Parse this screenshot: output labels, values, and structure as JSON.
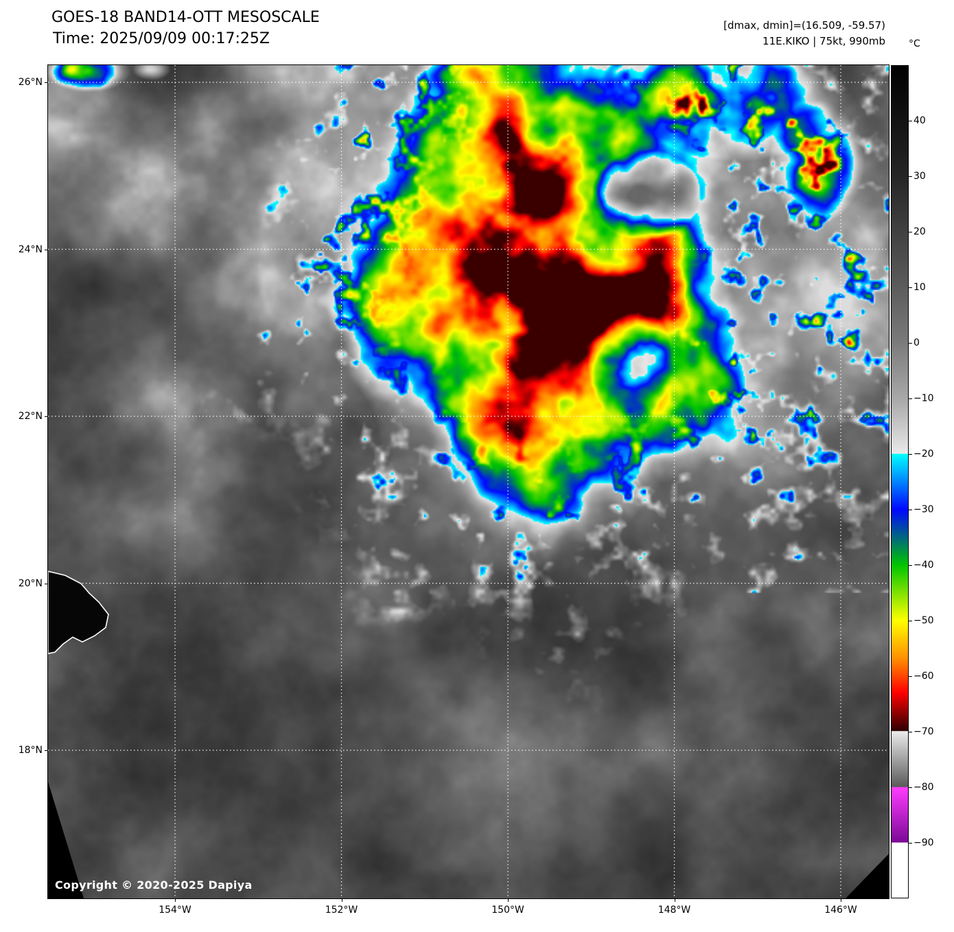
{
  "header": {
    "title": "GOES-18 BAND14-OTT MESOSCALE",
    "time_line": "Time: 2025/09/09 00:17:25Z",
    "range_line": "[dmax, dmin]=(16.509, -59.57)",
    "storm_line": "11E.KIKO | 75kt, 990mb"
  },
  "colorbar": {
    "unit_label": "°C",
    "domain": [
      50,
      -100
    ],
    "tick_values": [
      40,
      30,
      20,
      10,
      0,
      -10,
      -20,
      -30,
      -40,
      -50,
      -60,
      -70,
      -80,
      -90
    ],
    "stops": [
      {
        "t": 50,
        "color": "#000000"
      },
      {
        "t": 30,
        "color": "#262626"
      },
      {
        "t": 10,
        "color": "#5c5c5c"
      },
      {
        "t": 0,
        "color": "#7b7b7b"
      },
      {
        "t": -10,
        "color": "#a8a8a8"
      },
      {
        "t": -19.9,
        "color": "#e9e9e9"
      },
      {
        "t": -20,
        "color": "#00ffff"
      },
      {
        "t": -30,
        "color": "#0008ff"
      },
      {
        "t": -40,
        "color": "#00c400"
      },
      {
        "t": -50,
        "color": "#ffff00"
      },
      {
        "t": -57,
        "color": "#ff8c00"
      },
      {
        "t": -63,
        "color": "#ff0000"
      },
      {
        "t": -69.9,
        "color": "#2e0000"
      },
      {
        "t": -70,
        "color": "#ebebeb"
      },
      {
        "t": -80,
        "color": "#5a5a5a"
      },
      {
        "t": -80.1,
        "color": "#ff3cff"
      },
      {
        "t": -90,
        "color": "#7a0a96"
      },
      {
        "t": -90.1,
        "color": "#ffffff"
      },
      {
        "t": -100,
        "color": "#ffffff"
      }
    ]
  },
  "axes": {
    "lat_labels": [
      "26°N",
      "24°N",
      "22°N",
      "20°N",
      "18°N"
    ],
    "lon_labels": [
      "154°W",
      "152°W",
      "150°W",
      "148°W",
      "146°W"
    ],
    "lat_values": [
      26,
      24,
      22,
      20,
      18
    ],
    "lon_values": [
      154,
      152,
      150,
      148,
      146
    ]
  },
  "footer": {
    "copyright": "Copyright © 2020-2025 Dapiya"
  }
}
